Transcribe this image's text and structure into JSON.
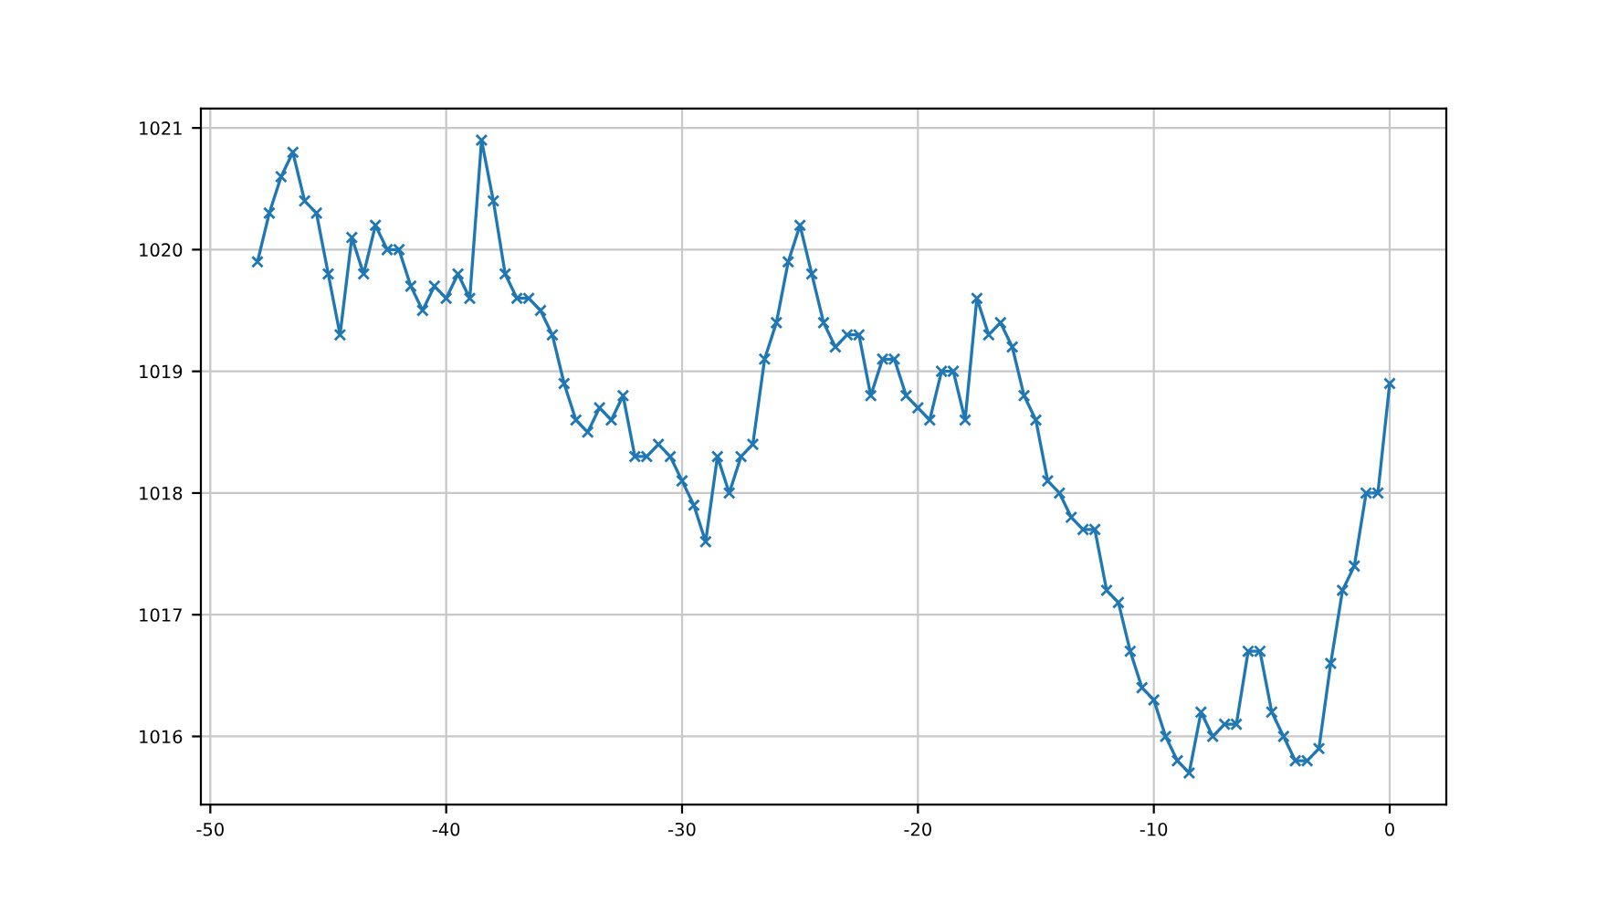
{
  "chart_data": {
    "type": "line",
    "color": "#1f77b4",
    "marker": "cross",
    "line_style": "solid",
    "grid": true,
    "x": [
      -48,
      -47.5,
      -47,
      -46.5,
      -46,
      -45.5,
      -45,
      -44.5,
      -44,
      -43.5,
      -43,
      -42.5,
      -42,
      -41.5,
      -41,
      -40.5,
      -40,
      -39.5,
      -39,
      -38.5,
      -38,
      -37.5,
      -37,
      -36.5,
      -36,
      -35.5,
      -35,
      -34.5,
      -34,
      -33.5,
      -33,
      -32.5,
      -32,
      -31.5,
      -31,
      -30.5,
      -30,
      -29.5,
      -29,
      -28.5,
      -28,
      -27.5,
      -27,
      -26.5,
      -26,
      -25.5,
      -25,
      -24.5,
      -24,
      -23.5,
      -23,
      -22.5,
      -22,
      -21.5,
      -21,
      -20.5,
      -20,
      -19.5,
      -19,
      -18.5,
      -18,
      -17.5,
      -17,
      -16.5,
      -16,
      -15.5,
      -15,
      -14.5,
      -14,
      -13.5,
      -13,
      -12.5,
      -12,
      -11.5,
      -11,
      -10.5,
      -10,
      -9.5,
      -9,
      -8.5,
      -8,
      -7.5,
      -7,
      -6.5,
      -6,
      -5.5,
      -5,
      -4.5,
      -4,
      -3.5,
      -3,
      -2.5,
      -2,
      -1.5,
      -1,
      -0.5,
      0
    ],
    "values": [
      1019.9,
      1020.3,
      1020.6,
      1020.8,
      1020.4,
      1020.3,
      1019.8,
      1019.3,
      1020.1,
      1019.8,
      1020.2,
      1020.0,
      1020.0,
      1019.7,
      1019.5,
      1019.7,
      1019.6,
      1019.8,
      1019.6,
      1020.9,
      1020.4,
      1019.8,
      1019.6,
      1019.6,
      1019.5,
      1019.3,
      1018.9,
      1018.6,
      1018.5,
      1018.7,
      1018.6,
      1018.8,
      1018.3,
      1018.3,
      1018.4,
      1018.3,
      1018.1,
      1017.9,
      1017.6,
      1018.3,
      1018.0,
      1018.3,
      1018.4,
      1019.1,
      1019.4,
      1019.9,
      1020.2,
      1019.8,
      1019.4,
      1019.2,
      1019.3,
      1019.3,
      1018.8,
      1019.1,
      1019.1,
      1018.8,
      1018.7,
      1018.6,
      1019.0,
      1019.0,
      1018.6,
      1019.6,
      1019.3,
      1019.4,
      1019.2,
      1018.8,
      1018.6,
      1018.1,
      1018.0,
      1017.8,
      1017.7,
      1017.7,
      1017.2,
      1017.1,
      1016.7,
      1016.4,
      1016.3,
      1016.0,
      1015.8,
      1015.7,
      1016.2,
      1016.0,
      1016.1,
      1016.1,
      1016.7,
      1016.7,
      1016.2,
      1016.0,
      1015.8,
      1015.8,
      1015.9,
      1016.6,
      1017.2,
      1017.4,
      1018.0,
      1018.0,
      1018.9
    ],
    "xlim": [
      -50.4,
      2.4
    ],
    "ylim": [
      1015.44,
      1021.16
    ],
    "xticks": [
      -50,
      -40,
      -30,
      -20,
      -10,
      0
    ],
    "yticks": [
      1016,
      1017,
      1018,
      1019,
      1020,
      1021
    ]
  }
}
